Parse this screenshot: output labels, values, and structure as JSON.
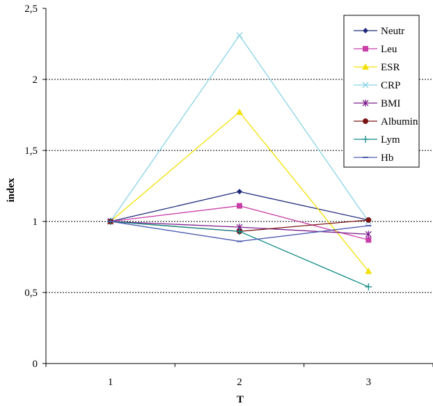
{
  "chart_data": {
    "type": "line",
    "title": "",
    "xlabel": "T",
    "ylabel": "index",
    "categories": [
      "1",
      "2",
      "3"
    ],
    "ylim": [
      0,
      2.5
    ],
    "yticks": [
      0,
      0.5,
      1,
      1.5,
      2,
      2.5
    ],
    "ytick_labels": [
      "0",
      "0,5",
      "1",
      "1,5",
      "2",
      "2,5"
    ],
    "grid": "horizontal dotted",
    "legend_position": "top-right",
    "series": [
      {
        "name": "Neutr",
        "values": [
          1.0,
          1.21,
          1.01
        ],
        "color": "#1F2A7A",
        "marker": "diamond"
      },
      {
        "name": "Leu",
        "values": [
          1.0,
          1.11,
          0.87
        ],
        "color": "#C93FA8",
        "marker": "square"
      },
      {
        "name": "ESR",
        "values": [
          1.0,
          1.77,
          0.65
        ],
        "color": "#F2E000",
        "marker": "triangle"
      },
      {
        "name": "CRP",
        "values": [
          1.0,
          2.31,
          1.0
        ],
        "color": "#88D3E6",
        "marker": "x"
      },
      {
        "name": "BMI",
        "values": [
          1.0,
          0.96,
          0.91
        ],
        "color": "#7B1F8C",
        "marker": "star"
      },
      {
        "name": "Albumin",
        "values": [
          1.0,
          0.93,
          1.01
        ],
        "color": "#7A1414",
        "marker": "circle"
      },
      {
        "name": "Lym",
        "values": [
          1.0,
          0.93,
          0.54
        ],
        "color": "#0E8A86",
        "marker": "plus"
      },
      {
        "name": "Hb",
        "values": [
          1.0,
          0.86,
          0.97
        ],
        "color": "#4A59B0",
        "marker": "dash"
      }
    ]
  }
}
